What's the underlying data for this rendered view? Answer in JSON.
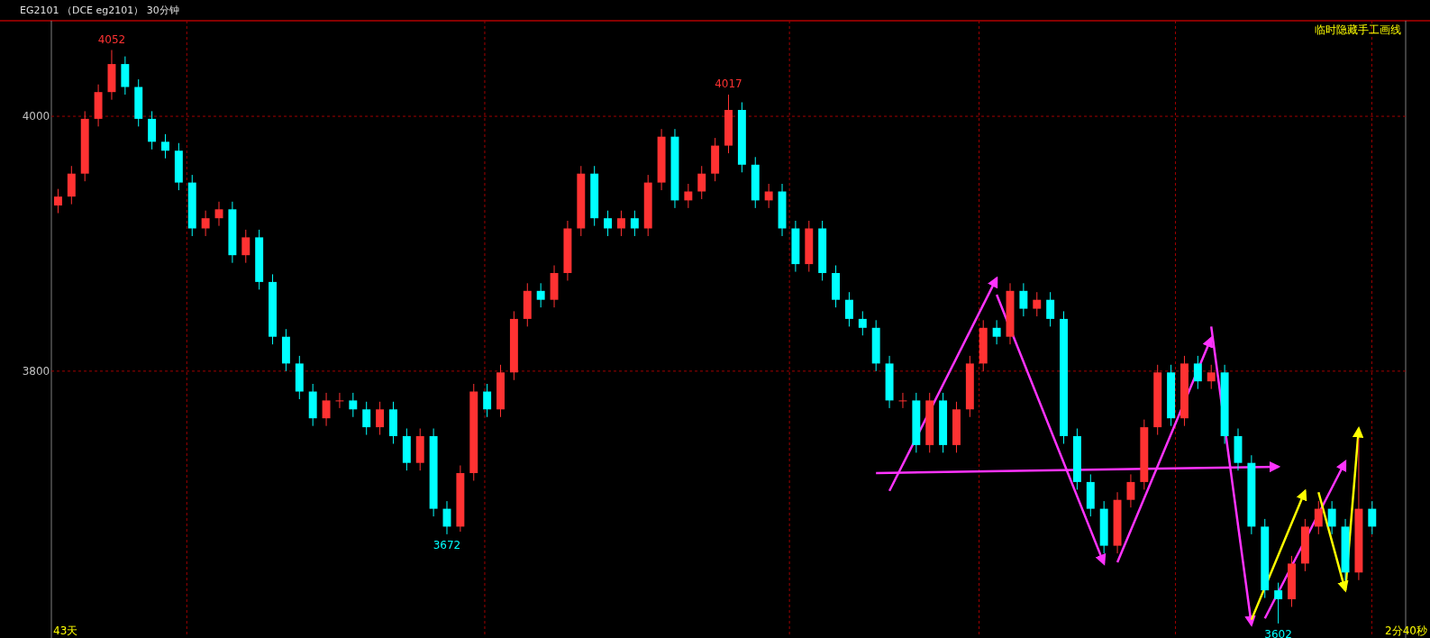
{
  "chart_data": {
    "type": "candlestick",
    "title": "EG2101 （DCE eg2101） 30分钟",
    "categories": [
      null,
      null,
      null,
      null,
      null,
      null,
      null,
      null,
      null,
      null,
      null,
      null,
      null,
      null,
      null,
      null,
      null,
      null,
      null,
      null,
      null,
      null,
      null,
      null,
      null,
      null,
      null,
      null,
      null,
      null,
      null,
      null,
      null,
      null,
      null,
      null,
      null,
      null,
      null,
      null,
      null,
      null,
      null,
      null,
      null,
      null,
      null,
      null,
      null,
      null,
      null,
      null,
      null,
      null,
      null,
      null,
      null,
      null,
      null,
      null,
      null,
      null,
      null,
      null,
      null,
      null,
      null,
      null,
      null,
      null,
      null,
      null,
      null,
      null,
      null,
      null,
      null,
      null,
      null,
      null,
      null,
      null,
      null,
      null,
      null,
      null,
      null,
      null,
      null,
      null,
      null,
      null,
      null,
      null,
      null,
      null,
      null,
      null,
      null
    ],
    "ohlc": [
      [
        3930,
        3943,
        3924,
        3937
      ],
      [
        3937,
        3961,
        3931,
        3955
      ],
      [
        3955,
        4004,
        3949,
        3998
      ],
      [
        3998,
        4025,
        3992,
        4019
      ],
      [
        4019,
        4052,
        4013,
        4041
      ],
      [
        4041,
        4047,
        4017,
        4023
      ],
      [
        4023,
        4029,
        3992,
        3998
      ],
      [
        3998,
        4004,
        3974,
        3980
      ],
      [
        3980,
        3986,
        3967,
        3973
      ],
      [
        3973,
        3979,
        3942,
        3948
      ],
      [
        3948,
        3954,
        3906,
        3912
      ],
      [
        3912,
        3926,
        3906,
        3920
      ],
      [
        3920,
        3933,
        3914,
        3927
      ],
      [
        3927,
        3933,
        3885,
        3891
      ],
      [
        3891,
        3911,
        3885,
        3905
      ],
      [
        3905,
        3911,
        3864,
        3870
      ],
      [
        3870,
        3876,
        3821,
        3827
      ],
      [
        3827,
        3833,
        3800,
        3806
      ],
      [
        3806,
        3812,
        3778,
        3784
      ],
      [
        3784,
        3790,
        3757,
        3763
      ],
      [
        3763,
        3783,
        3757,
        3777
      ],
      [
        3777,
        3783,
        3771,
        3777
      ],
      [
        3777,
        3783,
        3764,
        3770
      ],
      [
        3770,
        3776,
        3750,
        3756
      ],
      [
        3756,
        3776,
        3750,
        3770
      ],
      [
        3770,
        3776,
        3743,
        3749
      ],
      [
        3749,
        3755,
        3722,
        3728
      ],
      [
        3728,
        3755,
        3722,
        3749
      ],
      [
        3749,
        3755,
        3686,
        3692
      ],
      [
        3692,
        3698,
        3672,
        3678
      ],
      [
        3678,
        3726,
        3674,
        3720
      ],
      [
        3720,
        3790,
        3714,
        3784
      ],
      [
        3784,
        3790,
        3764,
        3770
      ],
      [
        3770,
        3805,
        3764,
        3799
      ],
      [
        3799,
        3847,
        3793,
        3841
      ],
      [
        3841,
        3869,
        3835,
        3863
      ],
      [
        3863,
        3869,
        3850,
        3856
      ],
      [
        3856,
        3883,
        3850,
        3877
      ],
      [
        3877,
        3918,
        3871,
        3912
      ],
      [
        3912,
        3961,
        3906,
        3955
      ],
      [
        3955,
        3961,
        3914,
        3920
      ],
      [
        3920,
        3926,
        3906,
        3912
      ],
      [
        3912,
        3926,
        3906,
        3920
      ],
      [
        3920,
        3926,
        3906,
        3912
      ],
      [
        3912,
        3954,
        3906,
        3948
      ],
      [
        3948,
        3990,
        3942,
        3984
      ],
      [
        3984,
        3990,
        3928,
        3934
      ],
      [
        3934,
        3947,
        3928,
        3941
      ],
      [
        3941,
        3961,
        3935,
        3955
      ],
      [
        3955,
        3983,
        3949,
        3977
      ],
      [
        3977,
        4017,
        3971,
        4005
      ],
      [
        4005,
        4011,
        3956,
        3962
      ],
      [
        3962,
        3968,
        3928,
        3934
      ],
      [
        3934,
        3947,
        3928,
        3941
      ],
      [
        3941,
        3947,
        3906,
        3912
      ],
      [
        3912,
        3918,
        3878,
        3884
      ],
      [
        3884,
        3918,
        3878,
        3912
      ],
      [
        3912,
        3918,
        3871,
        3877
      ],
      [
        3877,
        3883,
        3850,
        3856
      ],
      [
        3856,
        3862,
        3835,
        3841
      ],
      [
        3841,
        3847,
        3828,
        3834
      ],
      [
        3834,
        3840,
        3800,
        3806
      ],
      [
        3806,
        3812,
        3771,
        3777
      ],
      [
        3777,
        3783,
        3771,
        3777
      ],
      [
        3777,
        3783,
        3736,
        3742
      ],
      [
        3742,
        3783,
        3736,
        3777
      ],
      [
        3777,
        3783,
        3736,
        3742
      ],
      [
        3742,
        3776,
        3736,
        3770
      ],
      [
        3770,
        3812,
        3764,
        3806
      ],
      [
        3806,
        3840,
        3800,
        3834
      ],
      [
        3834,
        3840,
        3821,
        3827
      ],
      [
        3827,
        3869,
        3821,
        3863
      ],
      [
        3863,
        3869,
        3843,
        3849
      ],
      [
        3849,
        3862,
        3843,
        3856
      ],
      [
        3856,
        3862,
        3835,
        3841
      ],
      [
        3841,
        3847,
        3743,
        3749
      ],
      [
        3749,
        3755,
        3707,
        3713
      ],
      [
        3713,
        3719,
        3686,
        3692
      ],
      [
        3692,
        3698,
        3657,
        3663
      ],
      [
        3663,
        3705,
        3657,
        3699
      ],
      [
        3699,
        3719,
        3693,
        3713
      ],
      [
        3713,
        3762,
        3707,
        3756
      ],
      [
        3756,
        3805,
        3750,
        3799
      ],
      [
        3799,
        3805,
        3757,
        3763
      ],
      [
        3763,
        3812,
        3757,
        3806
      ],
      [
        3806,
        3812,
        3786,
        3792
      ],
      [
        3792,
        3805,
        3786,
        3799
      ],
      [
        3799,
        3805,
        3743,
        3749
      ],
      [
        3749,
        3755,
        3722,
        3728
      ],
      [
        3728,
        3734,
        3672,
        3678
      ],
      [
        3678,
        3684,
        3622,
        3628
      ],
      [
        3628,
        3634,
        3602,
        3621
      ],
      [
        3621,
        3655,
        3615,
        3649
      ],
      [
        3649,
        3684,
        3643,
        3678
      ],
      [
        3678,
        3698,
        3672,
        3692
      ],
      [
        3692,
        3698,
        3672,
        3678
      ],
      [
        3678,
        3684,
        3636,
        3642
      ],
      [
        3642,
        3747,
        3636,
        3692
      ],
      [
        3692,
        3698,
        3672,
        3678
      ]
    ],
    "series": [
      {
        "type": "line",
        "color": "#ff33ff",
        "values": [
          null,
          null,
          null,
          null,
          null,
          null,
          null,
          null,
          null,
          null,
          null,
          null,
          null,
          null,
          null,
          null,
          null,
          null,
          null,
          null,
          null,
          null,
          null,
          null,
          null,
          null,
          null,
          null,
          null,
          null,
          null,
          null,
          null,
          null,
          null,
          null,
          null,
          null,
          null,
          null,
          null,
          null,
          null,
          null,
          null,
          null,
          null,
          null,
          null,
          null,
          null,
          null,
          null,
          null,
          null,
          null,
          null,
          null,
          null,
          null,
          null,
          null,
          3706,
          null,
          null,
          null,
          null,
          null,
          null,
          null,
          3873,
          null,
          null,
          null,
          null,
          null,
          null,
          null,
          null,
          null,
          null,
          null,
          null,
          null,
          null,
          null,
          null,
          null,
          null,
          null,
          null,
          null,
          null,
          null,
          null,
          null,
          null,
          null,
          null
        ]
      },
      {
        "type": "line",
        "color": "#ff33ff",
        "values": [
          null,
          null,
          null,
          null,
          null,
          null,
          null,
          null,
          null,
          null,
          null,
          null,
          null,
          null,
          null,
          null,
          null,
          null,
          null,
          null,
          null,
          null,
          null,
          null,
          null,
          null,
          null,
          null,
          null,
          null,
          null,
          null,
          null,
          null,
          null,
          null,
          null,
          null,
          null,
          null,
          null,
          null,
          null,
          null,
          null,
          null,
          null,
          null,
          null,
          null,
          null,
          null,
          null,
          null,
          null,
          null,
          null,
          null,
          null,
          null,
          null,
          null,
          null,
          null,
          null,
          null,
          null,
          null,
          null,
          null,
          3860,
          null,
          null,
          null,
          null,
          null,
          null,
          null,
          3649,
          null,
          null,
          null,
          null,
          null,
          null,
          null,
          null,
          null,
          null,
          null,
          null,
          null,
          null,
          null,
          null,
          null,
          null,
          null,
          null
        ]
      },
      {
        "type": "line",
        "color": "#ff33ff",
        "values": [
          null,
          null,
          null,
          null,
          null,
          null,
          null,
          null,
          null,
          null,
          null,
          null,
          null,
          null,
          null,
          null,
          null,
          null,
          null,
          null,
          null,
          null,
          null,
          null,
          null,
          null,
          null,
          null,
          null,
          null,
          null,
          null,
          null,
          null,
          null,
          null,
          null,
          null,
          null,
          null,
          null,
          null,
          null,
          null,
          null,
          null,
          null,
          null,
          null,
          null,
          null,
          null,
          null,
          null,
          null,
          null,
          null,
          null,
          null,
          null,
          null,
          null,
          null,
          null,
          null,
          null,
          null,
          null,
          null,
          null,
          null,
          null,
          null,
          null,
          null,
          null,
          null,
          null,
          null,
          3650,
          null,
          null,
          null,
          null,
          null,
          null,
          3826,
          null,
          null,
          null,
          null,
          null,
          null,
          null,
          null,
          null,
          null,
          null,
          null
        ]
      },
      {
        "type": "line",
        "color": "#ff33ff",
        "values": [
          null,
          null,
          null,
          null,
          null,
          null,
          null,
          null,
          null,
          null,
          null,
          null,
          null,
          null,
          null,
          null,
          null,
          null,
          null,
          null,
          null,
          null,
          null,
          null,
          null,
          null,
          null,
          null,
          null,
          null,
          null,
          null,
          null,
          null,
          null,
          null,
          null,
          null,
          null,
          null,
          null,
          null,
          null,
          null,
          null,
          null,
          null,
          null,
          null,
          null,
          null,
          null,
          null,
          null,
          null,
          null,
          null,
          null,
          null,
          null,
          null,
          3720,
          null,
          null,
          null,
          null,
          null,
          null,
          null,
          null,
          null,
          null,
          null,
          null,
          null,
          null,
          null,
          null,
          null,
          null,
          null,
          null,
          null,
          null,
          null,
          null,
          null,
          null,
          null,
          null,
          null,
          3725,
          null,
          null,
          null,
          null,
          null,
          null,
          null
        ]
      },
      {
        "type": "line",
        "color": "#ff33ff",
        "values": [
          null,
          null,
          null,
          null,
          null,
          null,
          null,
          null,
          null,
          null,
          null,
          null,
          null,
          null,
          null,
          null,
          null,
          null,
          null,
          null,
          null,
          null,
          null,
          null,
          null,
          null,
          null,
          null,
          null,
          null,
          null,
          null,
          null,
          null,
          null,
          null,
          null,
          null,
          null,
          null,
          null,
          null,
          null,
          null,
          null,
          null,
          null,
          null,
          null,
          null,
          null,
          null,
          null,
          null,
          null,
          null,
          null,
          null,
          null,
          null,
          null,
          null,
          null,
          null,
          null,
          null,
          null,
          null,
          null,
          null,
          null,
          null,
          null,
          null,
          null,
          null,
          null,
          null,
          null,
          null,
          null,
          null,
          null,
          null,
          null,
          null,
          3835,
          null,
          null,
          3601,
          null,
          null,
          null,
          null,
          null,
          null,
          null,
          null,
          null
        ]
      },
      {
        "type": "line",
        "color": "#ff33ff",
        "values": [
          null,
          null,
          null,
          null,
          null,
          null,
          null,
          null,
          null,
          null,
          null,
          null,
          null,
          null,
          null,
          null,
          null,
          null,
          null,
          null,
          null,
          null,
          null,
          null,
          null,
          null,
          null,
          null,
          null,
          null,
          null,
          null,
          null,
          null,
          null,
          null,
          null,
          null,
          null,
          null,
          null,
          null,
          null,
          null,
          null,
          null,
          null,
          null,
          null,
          null,
          null,
          null,
          null,
          null,
          null,
          null,
          null,
          null,
          null,
          null,
          null,
          null,
          null,
          null,
          null,
          null,
          null,
          null,
          null,
          null,
          null,
          null,
          null,
          null,
          null,
          null,
          null,
          null,
          null,
          null,
          null,
          null,
          null,
          null,
          null,
          null,
          null,
          null,
          null,
          null,
          3606,
          null,
          null,
          null,
          null,
          null,
          3729,
          null,
          null
        ]
      },
      {
        "type": "line",
        "color": "#ffff00",
        "values": [
          null,
          null,
          null,
          null,
          null,
          null,
          null,
          null,
          null,
          null,
          null,
          null,
          null,
          null,
          null,
          null,
          null,
          null,
          null,
          null,
          null,
          null,
          null,
          null,
          null,
          null,
          null,
          null,
          null,
          null,
          null,
          null,
          null,
          null,
          null,
          null,
          null,
          null,
          null,
          null,
          null,
          null,
          null,
          null,
          null,
          null,
          null,
          null,
          null,
          null,
          null,
          null,
          null,
          null,
          null,
          null,
          null,
          null,
          null,
          null,
          null,
          null,
          null,
          null,
          null,
          null,
          null,
          null,
          null,
          null,
          null,
          null,
          null,
          null,
          null,
          null,
          null,
          null,
          null,
          null,
          null,
          null,
          null,
          null,
          null,
          null,
          null,
          null,
          null,
          3605,
          null,
          null,
          null,
          3706,
          null,
          null,
          null,
          null,
          null
        ]
      },
      {
        "type": "line",
        "color": "#ffff00",
        "values": [
          null,
          null,
          null,
          null,
          null,
          null,
          null,
          null,
          null,
          null,
          null,
          null,
          null,
          null,
          null,
          null,
          null,
          null,
          null,
          null,
          null,
          null,
          null,
          null,
          null,
          null,
          null,
          null,
          null,
          null,
          null,
          null,
          null,
          null,
          null,
          null,
          null,
          null,
          null,
          null,
          null,
          null,
          null,
          null,
          null,
          null,
          null,
          null,
          null,
          null,
          null,
          null,
          null,
          null,
          null,
          null,
          null,
          null,
          null,
          null,
          null,
          null,
          null,
          null,
          null,
          null,
          null,
          null,
          null,
          null,
          null,
          null,
          null,
          null,
          null,
          null,
          null,
          null,
          null,
          null,
          null,
          null,
          null,
          null,
          null,
          null,
          null,
          null,
          null,
          null,
          null,
          null,
          null,
          null,
          3705,
          null,
          3628,
          null,
          null
        ]
      },
      {
        "type": "line",
        "color": "#ffff00",
        "values": [
          null,
          null,
          null,
          null,
          null,
          null,
          null,
          null,
          null,
          null,
          null,
          null,
          null,
          null,
          null,
          null,
          null,
          null,
          null,
          null,
          null,
          null,
          null,
          null,
          null,
          null,
          null,
          null,
          null,
          null,
          null,
          null,
          null,
          null,
          null,
          null,
          null,
          null,
          null,
          null,
          null,
          null,
          null,
          null,
          null,
          null,
          null,
          null,
          null,
          null,
          null,
          null,
          null,
          null,
          null,
          null,
          null,
          null,
          null,
          null,
          null,
          null,
          null,
          null,
          null,
          null,
          null,
          null,
          null,
          null,
          null,
          null,
          null,
          null,
          null,
          null,
          null,
          null,
          null,
          null,
          null,
          null,
          null,
          null,
          null,
          null,
          null,
          null,
          null,
          null,
          null,
          null,
          null,
          null,
          null,
          null,
          3628,
          3755,
          null
        ]
      }
    ],
    "ylim": [
      3592,
      4075
    ],
    "yticks": [
      4000,
      3800
    ],
    "grid": true,
    "annotations": [
      {
        "text": "4052",
        "y": 4052
      },
      {
        "text": "4017",
        "y": 4017
      },
      {
        "text": "3672",
        "y": 3672
      },
      {
        "text": "3602",
        "y": 3602
      },
      "临时隐藏手工画线",
      "43天",
      "2分40秒"
    ]
  }
}
